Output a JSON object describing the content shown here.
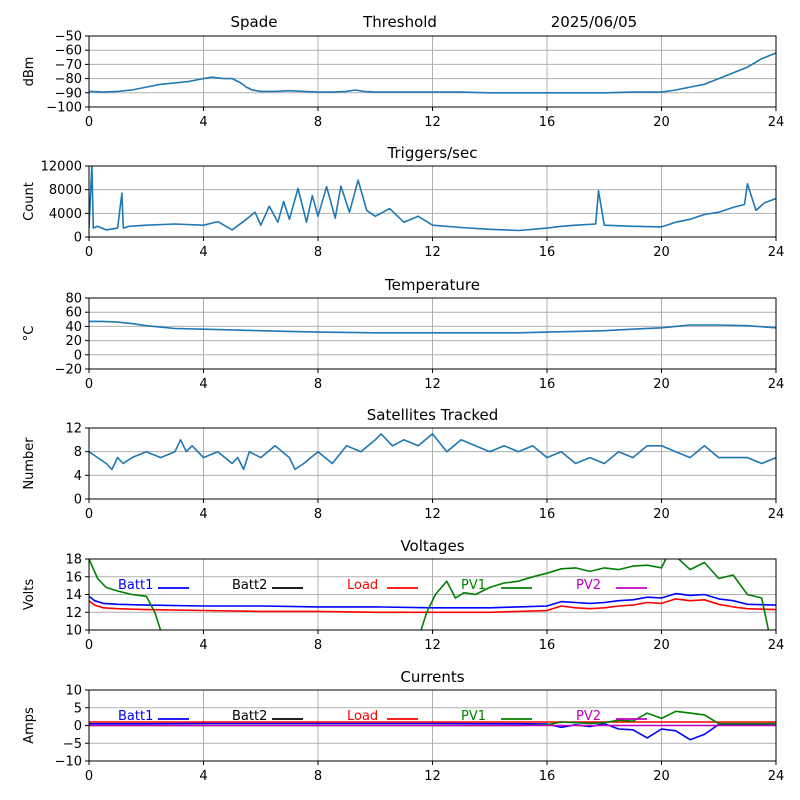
{
  "header": {
    "station": "Spade",
    "label": "Threshold",
    "date": "2025/06/05"
  },
  "chart_data": [
    {
      "id": "signal",
      "type": "line",
      "title": "",
      "ylabel": "dBm",
      "xlim": [
        0,
        24
      ],
      "ylim": [
        -100,
        -50
      ],
      "xticks": [
        0,
        4,
        8,
        12,
        16,
        20,
        24
      ],
      "yticks": [
        -100,
        -90,
        -80,
        -70,
        -60,
        -50
      ],
      "grid": true,
      "series": [
        {
          "name": "",
          "color": "#1f77b4",
          "x": [
            0,
            0.5,
            1,
            1.5,
            2,
            2.5,
            3,
            3.5,
            4,
            4.3,
            4.7,
            5,
            5.3,
            5.5,
            5.7,
            6,
            6.5,
            7,
            7.5,
            8,
            8.5,
            9,
            9.3,
            9.6,
            10,
            11,
            12,
            13,
            14,
            15,
            16,
            17,
            18,
            19,
            20,
            20.5,
            21,
            21.5,
            22,
            22.5,
            23,
            23.5,
            24
          ],
          "y": [
            -89,
            -89.5,
            -89,
            -88,
            -86,
            -84,
            -83,
            -82,
            -80,
            -79,
            -80,
            -80,
            -83,
            -86,
            -88,
            -89,
            -89,
            -88.5,
            -89,
            -89.5,
            -89.5,
            -89,
            -88,
            -89,
            -89.5,
            -89.5,
            -89.5,
            -89.5,
            -90,
            -90,
            -90,
            -90,
            -90,
            -89.5,
            -89.5,
            -88,
            -86,
            -84,
            -80,
            -76,
            -72,
            -66,
            -62
          ]
        }
      ]
    },
    {
      "id": "triggers",
      "type": "line",
      "title": "Triggers/sec",
      "ylabel": "Count",
      "xlim": [
        0,
        24
      ],
      "ylim": [
        0,
        12000
      ],
      "xticks": [
        0,
        4,
        8,
        12,
        16,
        20,
        24
      ],
      "yticks": [
        0,
        4000,
        8000,
        12000
      ],
      "grid": true,
      "series": [
        {
          "name": "",
          "color": "#1f77b4",
          "x": [
            0,
            0.1,
            0.15,
            0.3,
            0.6,
            1,
            1.15,
            1.2,
            1.4,
            2,
            3,
            4,
            4.5,
            5,
            5.5,
            5.8,
            6,
            6.3,
            6.6,
            6.8,
            7,
            7.3,
            7.6,
            7.8,
            8,
            8.3,
            8.6,
            8.8,
            9.1,
            9.4,
            9.7,
            10,
            10.5,
            11,
            11.5,
            12,
            13,
            14,
            15,
            15.5,
            16,
            16.5,
            17,
            17.7,
            17.8,
            18,
            19,
            20,
            20.5,
            21,
            21.5,
            22,
            22.5,
            22.9,
            23,
            23.3,
            23.6,
            24
          ],
          "y": [
            1500,
            12200,
            1500,
            1800,
            1200,
            1500,
            7400,
            1500,
            1800,
            2000,
            2200,
            2000,
            2600,
            1200,
            3000,
            4200,
            2000,
            5200,
            2500,
            6000,
            3000,
            8200,
            2500,
            7000,
            3500,
            8500,
            3200,
            8600,
            4200,
            9600,
            4500,
            3500,
            4800,
            2500,
            3500,
            2000,
            1600,
            1300,
            1100,
            1300,
            1500,
            1800,
            2000,
            2200,
            7800,
            2000,
            1800,
            1700,
            2500,
            3000,
            3800,
            4200,
            5000,
            5500,
            9000,
            4500,
            5800,
            6500
          ]
        }
      ]
    },
    {
      "id": "temperature",
      "type": "line",
      "title": "Temperature",
      "ylabel": "°C",
      "xlim": [
        0,
        24
      ],
      "ylim": [
        -20,
        80
      ],
      "xticks": [
        0,
        4,
        8,
        12,
        16,
        20,
        24
      ],
      "yticks": [
        -20,
        0,
        20,
        40,
        60,
        80
      ],
      "grid": true,
      "series": [
        {
          "name": "",
          "color": "#1f77b4",
          "x": [
            0,
            0.5,
            1,
            1.5,
            2,
            2.5,
            3,
            4,
            5,
            6,
            7,
            8,
            10,
            12,
            14,
            15,
            16,
            17,
            18,
            19,
            20,
            20.5,
            21,
            22,
            23,
            24
          ],
          "y": [
            47,
            47,
            46,
            44,
            41,
            39,
            37,
            36,
            35,
            34,
            33,
            32,
            31,
            31,
            31,
            31,
            32,
            33,
            34,
            36,
            38,
            40,
            42,
            42,
            41,
            38
          ]
        }
      ]
    },
    {
      "id": "satellites",
      "type": "line",
      "title": "Satellites Tracked",
      "ylabel": "Number",
      "xlim": [
        0,
        24
      ],
      "ylim": [
        0,
        12
      ],
      "xticks": [
        0,
        4,
        8,
        12,
        16,
        20,
        24
      ],
      "yticks": [
        0,
        4,
        8,
        12
      ],
      "grid": true,
      "series": [
        {
          "name": "",
          "color": "#1f77b4",
          "x": [
            0,
            0.3,
            0.6,
            0.8,
            1,
            1.2,
            1.5,
            2,
            2.5,
            3,
            3.2,
            3.4,
            3.6,
            4,
            4.5,
            5,
            5.2,
            5.4,
            5.6,
            6,
            6.5,
            7,
            7.2,
            7.5,
            8,
            8.5,
            9,
            9.5,
            10,
            10.2,
            10.6,
            11,
            11.5,
            12,
            12.5,
            13,
            13.5,
            14,
            14.5,
            15,
            15.5,
            16,
            16.5,
            17,
            17.5,
            18,
            18.5,
            19,
            19.5,
            20,
            20.5,
            21,
            21.5,
            22,
            22.5,
            23,
            23.5,
            24
          ],
          "y": [
            8,
            7,
            6,
            5,
            7,
            6,
            7,
            8,
            7,
            8,
            10,
            8,
            9,
            7,
            8,
            6,
            7,
            5,
            8,
            7,
            9,
            7,
            5,
            6,
            8,
            6,
            9,
            8,
            10,
            11,
            9,
            10,
            9,
            11,
            8,
            10,
            9,
            8,
            9,
            8,
            9,
            7,
            8,
            6,
            7,
            6,
            8,
            7,
            9,
            9,
            8,
            7,
            9,
            7,
            7,
            7,
            6,
            7
          ]
        }
      ]
    },
    {
      "id": "voltages",
      "type": "line",
      "title": "Voltages",
      "ylabel": "Volts",
      "xlim": [
        0,
        24
      ],
      "ylim": [
        10,
        18
      ],
      "xticks": [
        0,
        4,
        8,
        12,
        16,
        20,
        24
      ],
      "yticks": [
        10,
        12,
        14,
        16,
        18
      ],
      "grid": true,
      "legend": {
        "placement": "top",
        "columns": 5
      },
      "series": [
        {
          "name": "Batt1",
          "color": "#0000ff",
          "x": [
            0,
            0.2,
            0.5,
            1,
            2,
            4,
            6,
            8,
            10,
            12,
            14,
            15,
            16,
            16.5,
            17,
            17.5,
            18,
            18.5,
            19,
            19.5,
            20,
            20.5,
            21,
            21.5,
            22,
            22.5,
            23,
            24
          ],
          "y": [
            13.8,
            13.3,
            13.0,
            12.9,
            12.8,
            12.7,
            12.7,
            12.6,
            12.6,
            12.5,
            12.5,
            12.6,
            12.7,
            13.2,
            13.1,
            13.0,
            13.1,
            13.3,
            13.4,
            13.7,
            13.6,
            14.1,
            13.9,
            14.0,
            13.5,
            13.3,
            12.9,
            12.8
          ]
        },
        {
          "name": "Batt2",
          "color": "#000000",
          "x": [],
          "y": []
        },
        {
          "name": "Load",
          "color": "#ff0000",
          "x": [
            0,
            0.2,
            0.5,
            1,
            2,
            4,
            6,
            8,
            10,
            12,
            14,
            15,
            16,
            16.5,
            17,
            17.5,
            18,
            18.5,
            19,
            19.5,
            20,
            20.5,
            21,
            21.5,
            22,
            22.5,
            23,
            24
          ],
          "y": [
            13.3,
            12.8,
            12.5,
            12.4,
            12.3,
            12.2,
            12.1,
            12.1,
            12.0,
            12.0,
            12.0,
            12.1,
            12.2,
            12.7,
            12.5,
            12.4,
            12.5,
            12.7,
            12.8,
            13.1,
            13.0,
            13.5,
            13.3,
            13.4,
            12.9,
            12.6,
            12.4,
            12.3
          ]
        },
        {
          "name": "PV1",
          "color": "#008000",
          "x": [
            0,
            0.3,
            0.6,
            1,
            1.5,
            2,
            2.3,
            2.6,
            11.5,
            11.8,
            12.1,
            12.5,
            12.8,
            13.1,
            13.5,
            14,
            14.5,
            15,
            15.5,
            16,
            16.5,
            17,
            17.5,
            18,
            18.5,
            19,
            19.5,
            20,
            20.3,
            20.6,
            21,
            21.5,
            22,
            22.5,
            23,
            23.5,
            23.8
          ],
          "y": [
            18,
            15.8,
            14.8,
            14.4,
            14.0,
            13.8,
            12.0,
            9.0,
            9.0,
            12.0,
            14.0,
            15.5,
            13.6,
            14.2,
            14.0,
            14.8,
            15.3,
            15.5,
            16.0,
            16.4,
            16.9,
            17.0,
            16.6,
            17.0,
            16.8,
            17.2,
            17.3,
            17.0,
            19.0,
            18.0,
            16.8,
            17.6,
            15.8,
            16.2,
            14.0,
            13.6,
            9.0
          ]
        },
        {
          "name": "PV2",
          "color": "#bf00bf",
          "x": [],
          "y": []
        }
      ]
    },
    {
      "id": "currents",
      "type": "line",
      "title": "Currents",
      "ylabel": "Amps",
      "xlim": [
        0,
        24
      ],
      "ylim": [
        -10,
        10
      ],
      "xticks": [
        0,
        4,
        8,
        12,
        16,
        20,
        24
      ],
      "yticks": [
        -10,
        -5,
        0,
        5,
        10
      ],
      "grid": true,
      "legend": {
        "placement": "top",
        "columns": 5
      },
      "series": [
        {
          "name": "Batt1",
          "color": "#0000ff",
          "x": [
            0,
            2,
            4,
            8,
            12,
            15,
            16,
            16.5,
            17,
            17.5,
            18,
            18.5,
            19,
            19.5,
            20,
            20.5,
            21,
            21.5,
            22,
            24
          ],
          "y": [
            0.5,
            0.5,
            0.6,
            0.6,
            0.6,
            0.5,
            0.4,
            -0.5,
            0.2,
            -0.3,
            0.5,
            -1.0,
            -1.2,
            -3.5,
            -1.0,
            -1.5,
            -4.0,
            -2.5,
            0.3,
            0.4
          ]
        },
        {
          "name": "Batt2",
          "color": "#000000",
          "x": [],
          "y": []
        },
        {
          "name": "Load",
          "color": "#ff0000",
          "x": [
            0,
            4,
            8,
            12,
            16,
            20,
            24
          ],
          "y": [
            1.0,
            1.0,
            1.0,
            1.0,
            1.0,
            1.0,
            1.0
          ]
        },
        {
          "name": "PV1",
          "color": "#008000",
          "x": [
            0,
            2,
            4,
            8,
            12,
            15,
            16,
            16.5,
            17,
            17.5,
            18,
            18.5,
            19,
            19.5,
            20,
            20.5,
            21,
            21.5,
            22,
            24
          ],
          "y": [
            0,
            0,
            0,
            0,
            0,
            0,
            0.2,
            1.0,
            0.8,
            0.6,
            0.8,
            1.5,
            1.2,
            3.5,
            2.0,
            4.0,
            3.5,
            3.0,
            0.5,
            0.5
          ]
        },
        {
          "name": "PV2",
          "color": "#bf00bf",
          "x": [
            0,
            4,
            8,
            12,
            16,
            20,
            24
          ],
          "y": [
            0,
            0,
            0,
            0,
            0,
            0,
            0
          ]
        }
      ]
    }
  ]
}
